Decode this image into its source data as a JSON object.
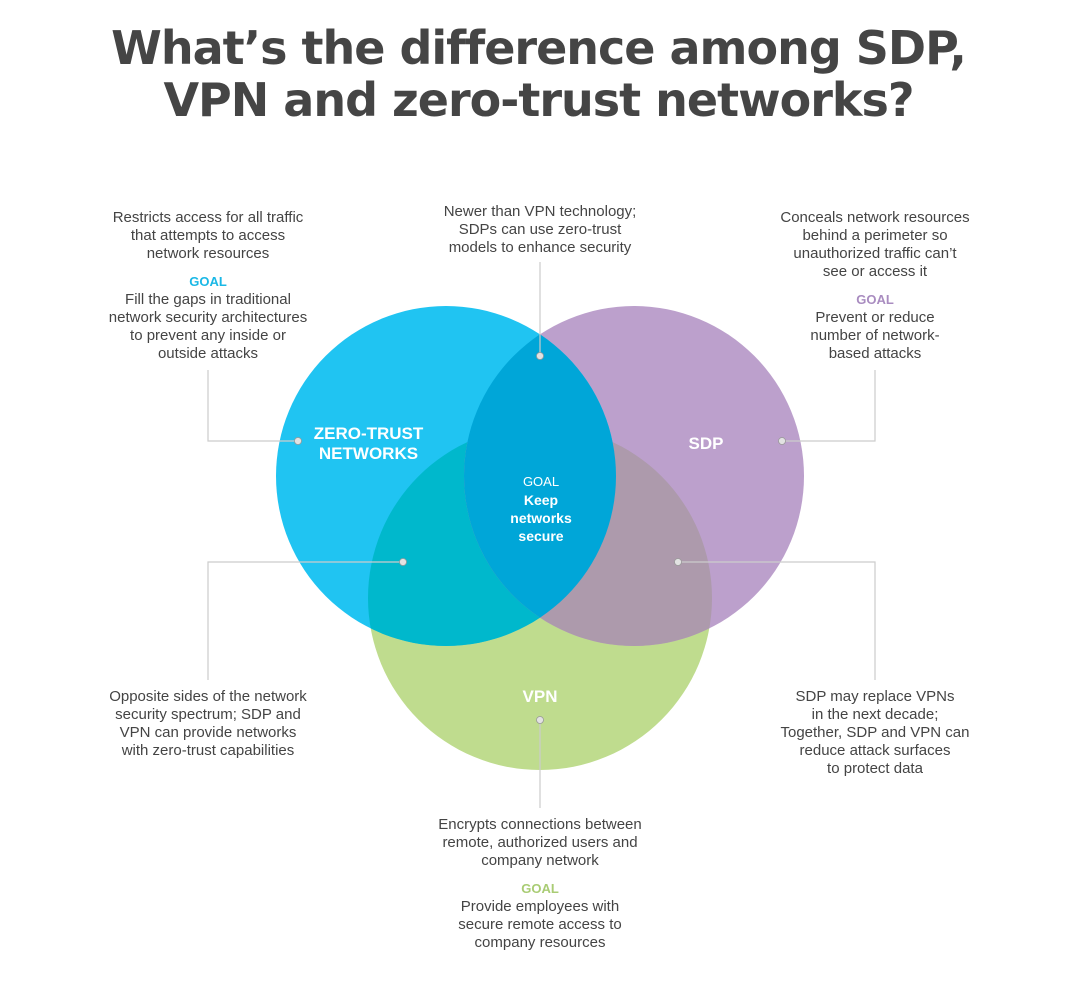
{
  "title": {
    "line1": "What’s the difference among SDP,",
    "line2": "VPN and zero-trust networks?"
  },
  "colors": {
    "zero_trust": "#20c4f2",
    "sdp": "#bca0cc",
    "vpn": "#bfdc8e",
    "zt_sdp": "#00a6d8",
    "zt_vpn": "#00b8cc",
    "sdp_vpn": "#ad9aac",
    "center": "#00a4d2",
    "goal_zt": "#1ab8e6",
    "goal_sdp": "#a98cc0",
    "goal_vpn": "#a9cc74",
    "text": "#444444",
    "line": "#cccccc"
  },
  "circles": {
    "zero_trust": {
      "label1": "ZERO-TRUST",
      "label2": "NETWORKS"
    },
    "sdp": {
      "label": "SDP"
    },
    "vpn": {
      "label": "VPN"
    },
    "center": {
      "goal": "GOAL",
      "line1": "Keep",
      "line2": "networks",
      "line3": "secure"
    }
  },
  "annotations": {
    "zero_trust": {
      "desc": [
        "Restricts access for all traffic",
        "that attempts to access",
        "network resources"
      ],
      "goal_label": "GOAL",
      "goal": [
        "Fill the gaps in traditional",
        "network security architectures",
        "to prevent any inside or",
        "outside attacks"
      ]
    },
    "zt_sdp": {
      "desc": [
        "Newer than VPN technology;",
        "SDPs can use zero-trust",
        "models to enhance security"
      ]
    },
    "sdp": {
      "desc": [
        "Conceals network resources",
        "behind a perimeter so",
        "unauthorized traffic can’t",
        "see or access it"
      ],
      "goal_label": "GOAL",
      "goal": [
        "Prevent or reduce",
        "number of network-",
        "based attacks"
      ]
    },
    "zt_vpn": {
      "desc": [
        "Opposite sides of the network",
        "security spectrum; SDP and",
        "VPN can provide networks",
        "with zero-trust capabilities"
      ]
    },
    "sdp_vpn": {
      "desc": [
        "SDP may replace VPNs",
        "in the next decade;",
        "Together, SDP and VPN can",
        "reduce attack surfaces",
        "to protect data"
      ]
    },
    "vpn": {
      "desc": [
        "Encrypts connections between",
        "remote, authorized users and",
        "company network"
      ],
      "goal_label": "GOAL",
      "goal": [
        "Provide employees with",
        "secure remote access to",
        "company resources"
      ]
    }
  }
}
